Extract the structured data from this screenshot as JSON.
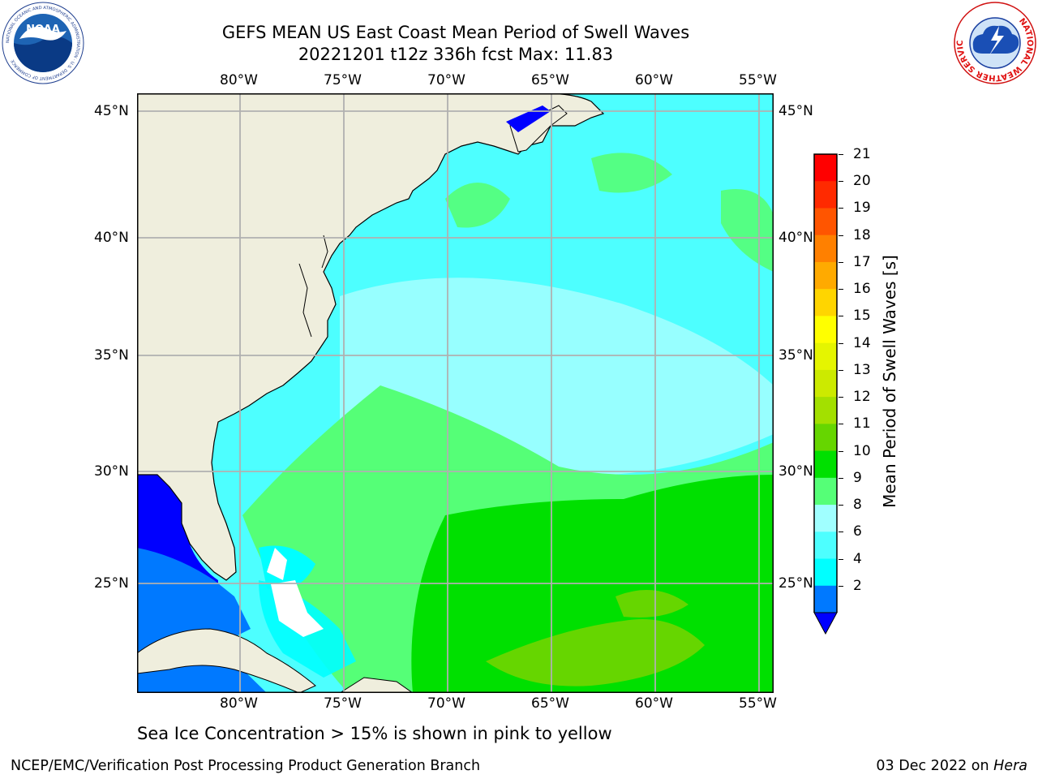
{
  "header": {
    "title_line1": "GEFS MEAN US East Coast Mean Period of Swell Waves",
    "title_line2": "20221201 t12z 336h fcst   Max: 11.83"
  },
  "logos": {
    "left": {
      "text": "NOAA",
      "ring_text": "NATIONAL OCEANIC AND ATMOSPHERIC ADMINISTRATION · U.S. DEPARTMENT OF COMMERCE"
    },
    "right": {
      "ring_text": "NATIONAL WEATHER SERVICE"
    }
  },
  "map": {
    "lon_labels": [
      "80°W",
      "75°W",
      "70°W",
      "65°W",
      "60°W",
      "55°W"
    ],
    "lat_labels": [
      "45°N",
      "40°N",
      "35°N",
      "30°N",
      "25°N"
    ],
    "colors": {
      "land": "#efeedd",
      "grid": "#b0b0b0",
      "coast": "#000000"
    }
  },
  "colorbar": {
    "label": "Mean Period of Swell Waves [s]",
    "ticks": [
      "21",
      "20",
      "19",
      "18",
      "17",
      "16",
      "15",
      "14",
      "13",
      "12",
      "11",
      "10",
      "9",
      "8",
      "6",
      "4",
      "2"
    ],
    "colors": [
      "#ff0000",
      "#ff2a00",
      "#ff5500",
      "#ff8000",
      "#ffaa00",
      "#ffd500",
      "#ffff00",
      "#e5f500",
      "#ccea00",
      "#a3e000",
      "#66d600",
      "#00e000",
      "#55ff77",
      "#a0ffff",
      "#4dffff",
      "#00ffff",
      "#0079ff"
    ],
    "under_color": "#0000ff"
  },
  "footer": {
    "note": "Sea Ice Concentration > 15% is shown in pink to yellow",
    "left": "NCEP/EMC/Verification Post Processing Product Generation Branch",
    "date": "03 Dec 2022 on ",
    "machine": "Hera"
  }
}
